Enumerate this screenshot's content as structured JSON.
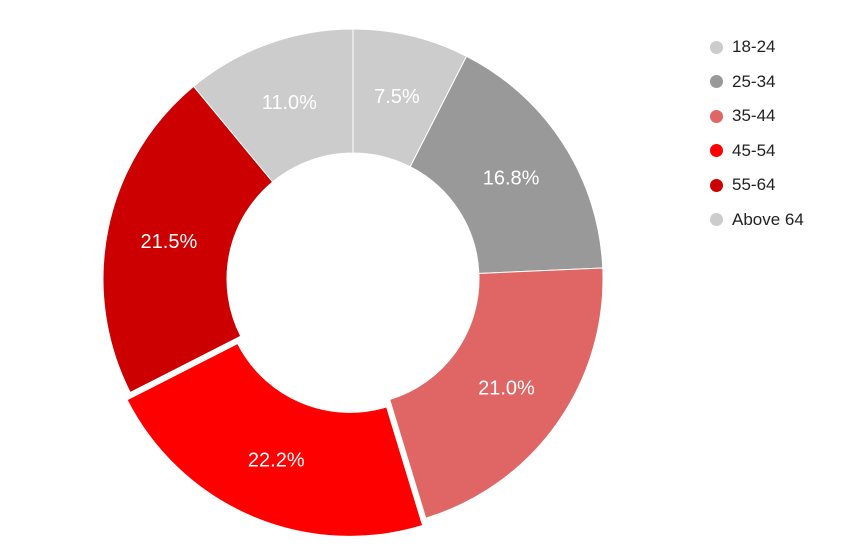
{
  "chart_data": {
    "type": "pie",
    "subtype": "donut",
    "title": "",
    "categories": [
      "18-24",
      "25-34",
      "35-44",
      "45-54",
      "55-64",
      "Above 64"
    ],
    "values": [
      7.5,
      16.8,
      21.0,
      22.2,
      21.5,
      11.0
    ],
    "labels": [
      "7.5%",
      "16.8%",
      "21.0%",
      "22.2%",
      "21.5%",
      "11.0%"
    ],
    "colors": [
      "#cccccc",
      "#999999",
      "#e06666",
      "#ff0000",
      "#cc0000",
      "#cccccc"
    ],
    "exploded": [
      "45-54"
    ],
    "start_angle_deg": 0,
    "direction": "clockwise",
    "legend_position": "right"
  },
  "legend": {
    "items": [
      {
        "label": "18-24",
        "color": "#cccccc"
      },
      {
        "label": "25-34",
        "color": "#999999"
      },
      {
        "label": "35-44",
        "color": "#e06666"
      },
      {
        "label": "45-54",
        "color": "#ff0000"
      },
      {
        "label": "55-64",
        "color": "#cc0000"
      },
      {
        "label": "Above 64",
        "color": "#cccccc"
      }
    ]
  }
}
